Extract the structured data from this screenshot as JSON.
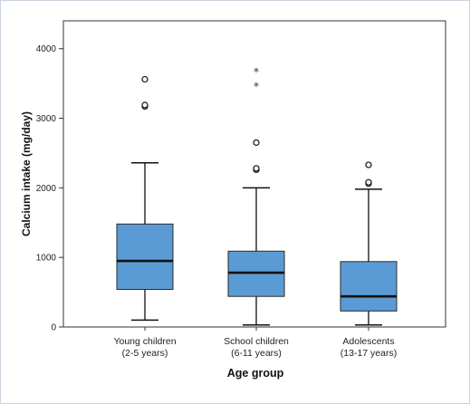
{
  "chart_data": {
    "type": "box",
    "title": "",
    "xlabel": "Age group",
    "ylabel": "Calcium intake (mg/day)",
    "ylim": [
      0,
      4400
    ],
    "yticks": [
      0,
      1000,
      2000,
      3000,
      4000
    ],
    "grid": false,
    "colors": {
      "box_fill": "#5b9bd5",
      "line": "#111111",
      "frame_border": "#c9d3de"
    },
    "categories": [
      {
        "line1": "Young children",
        "line2": "(2-5 years)"
      },
      {
        "line1": "School children",
        "line2": "(6-11 years)"
      },
      {
        "line1": "Adolescents",
        "line2": "(13-17 years)"
      }
    ],
    "boxes": [
      {
        "whisker_low": 100,
        "q1": 540,
        "median": 950,
        "q3": 1480,
        "whisker_high": 2360,
        "outliers": [
          3170,
          3190,
          3560
        ],
        "extremes": []
      },
      {
        "whisker_low": 30,
        "q1": 440,
        "median": 780,
        "q3": 1090,
        "whisker_high": 2000,
        "outliers": [
          2260,
          2280,
          2650
        ],
        "extremes": [
          3470,
          3680
        ]
      },
      {
        "whisker_low": 30,
        "q1": 230,
        "median": 440,
        "q3": 940,
        "whisker_high": 1980,
        "outliers": [
          2060,
          2080,
          2330
        ],
        "extremes": []
      }
    ]
  }
}
